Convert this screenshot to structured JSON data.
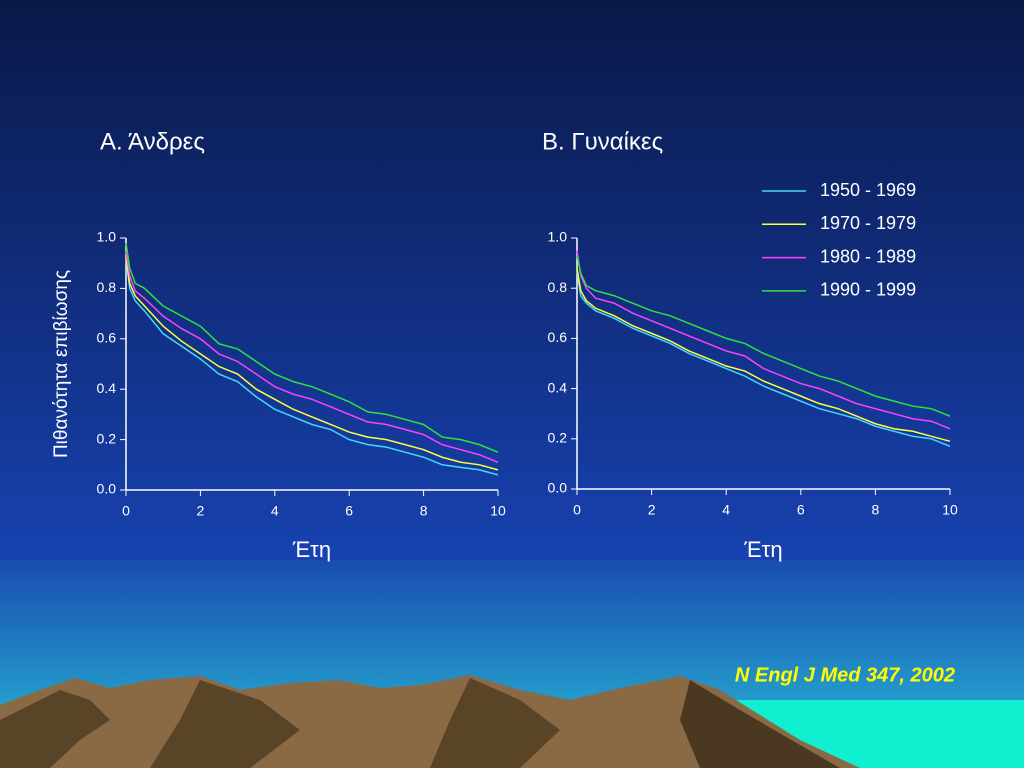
{
  "chart_data": [
    {
      "type": "line",
      "title": "Α. Άνδρες",
      "xlabel": "Έτη",
      "ylabel": "Πιθανότητα επιβίωσης",
      "x": [
        0,
        0.1,
        0.25,
        0.5,
        1,
        1.5,
        2,
        2.5,
        3,
        3.5,
        4,
        4.5,
        5,
        5.5,
        6,
        6.5,
        7,
        7.5,
        8,
        8.5,
        9,
        9.5,
        10
      ],
      "series": [
        {
          "color": "#40d8ff",
          "values": [
            0.92,
            0.8,
            0.75,
            0.71,
            0.62,
            0.57,
            0.52,
            0.46,
            0.43,
            0.37,
            0.32,
            0.29,
            0.26,
            0.24,
            0.2,
            0.18,
            0.17,
            0.15,
            0.13,
            0.1,
            0.09,
            0.08,
            0.06
          ]
        },
        {
          "color": "#ffff40",
          "values": [
            0.93,
            0.82,
            0.77,
            0.73,
            0.65,
            0.59,
            0.54,
            0.49,
            0.46,
            0.4,
            0.36,
            0.32,
            0.29,
            0.26,
            0.23,
            0.21,
            0.2,
            0.18,
            0.16,
            0.13,
            0.11,
            0.1,
            0.08
          ]
        },
        {
          "color": "#ff40ff",
          "values": [
            0.95,
            0.85,
            0.79,
            0.76,
            0.69,
            0.64,
            0.6,
            0.54,
            0.51,
            0.46,
            0.41,
            0.38,
            0.36,
            0.33,
            0.3,
            0.27,
            0.26,
            0.24,
            0.22,
            0.18,
            0.16,
            0.14,
            0.11
          ]
        },
        {
          "color": "#30e040",
          "values": [
            0.98,
            0.88,
            0.82,
            0.8,
            0.73,
            0.69,
            0.65,
            0.58,
            0.56,
            0.51,
            0.46,
            0.43,
            0.41,
            0.38,
            0.35,
            0.31,
            0.3,
            0.28,
            0.26,
            0.21,
            0.2,
            0.18,
            0.15
          ]
        }
      ],
      "xlim": [
        0,
        10
      ],
      "xticks": [
        0,
        2,
        4,
        6,
        8,
        10
      ],
      "ylim": [
        0,
        1
      ],
      "yticks": [
        {
          "value": 0,
          "label": "0.0"
        },
        0.2,
        0.4,
        0.6,
        0.8,
        {
          "value": 1,
          "label": "1.0"
        }
      ]
    },
    {
      "type": "line",
      "title": "Β. Γυναίκες",
      "xlabel": "Έτη",
      "x": [
        0,
        0.1,
        0.25,
        0.5,
        1,
        1.5,
        2,
        2.5,
        3,
        3.5,
        4,
        4.5,
        5,
        5.5,
        6,
        6.5,
        7,
        7.5,
        8,
        8.5,
        9,
        9.5,
        10
      ],
      "series": [
        {
          "name": "1950 - 1969",
          "color": "#40d8ff",
          "values": [
            0.87,
            0.77,
            0.74,
            0.71,
            0.68,
            0.64,
            0.61,
            0.58,
            0.54,
            0.51,
            0.48,
            0.45,
            0.41,
            0.38,
            0.35,
            0.32,
            0.3,
            0.28,
            0.25,
            0.23,
            0.21,
            0.2,
            0.17
          ]
        },
        {
          "name": "1970 - 1979",
          "color": "#ffff40",
          "values": [
            0.88,
            0.79,
            0.75,
            0.72,
            0.69,
            0.65,
            0.62,
            0.59,
            0.55,
            0.52,
            0.49,
            0.47,
            0.43,
            0.4,
            0.37,
            0.34,
            0.32,
            0.29,
            0.26,
            0.24,
            0.23,
            0.21,
            0.19
          ]
        },
        {
          "name": "1980 - 1989",
          "color": "#ff40ff",
          "values": [
            0.95,
            0.85,
            0.8,
            0.76,
            0.74,
            0.7,
            0.67,
            0.64,
            0.61,
            0.58,
            0.55,
            0.53,
            0.48,
            0.45,
            0.42,
            0.4,
            0.37,
            0.34,
            0.32,
            0.3,
            0.28,
            0.27,
            0.24
          ]
        },
        {
          "name": "1990 - 1999",
          "color": "#30e040",
          "values": [
            0.93,
            0.86,
            0.81,
            0.79,
            0.77,
            0.74,
            0.71,
            0.69,
            0.66,
            0.63,
            0.6,
            0.58,
            0.54,
            0.51,
            0.48,
            0.45,
            0.43,
            0.4,
            0.37,
            0.35,
            0.33,
            0.32,
            0.29
          ]
        }
      ],
      "xlim": [
        0,
        10
      ],
      "xticks": [
        0,
        2,
        4,
        6,
        8,
        10
      ],
      "ylim": [
        0,
        1
      ],
      "yticks": [
        {
          "value": 0,
          "label": "0.0"
        },
        0.2,
        0.4,
        0.6,
        0.8,
        {
          "value": 1,
          "label": "1.0"
        }
      ]
    }
  ],
  "citation": "N Engl J Med 347, 2002"
}
